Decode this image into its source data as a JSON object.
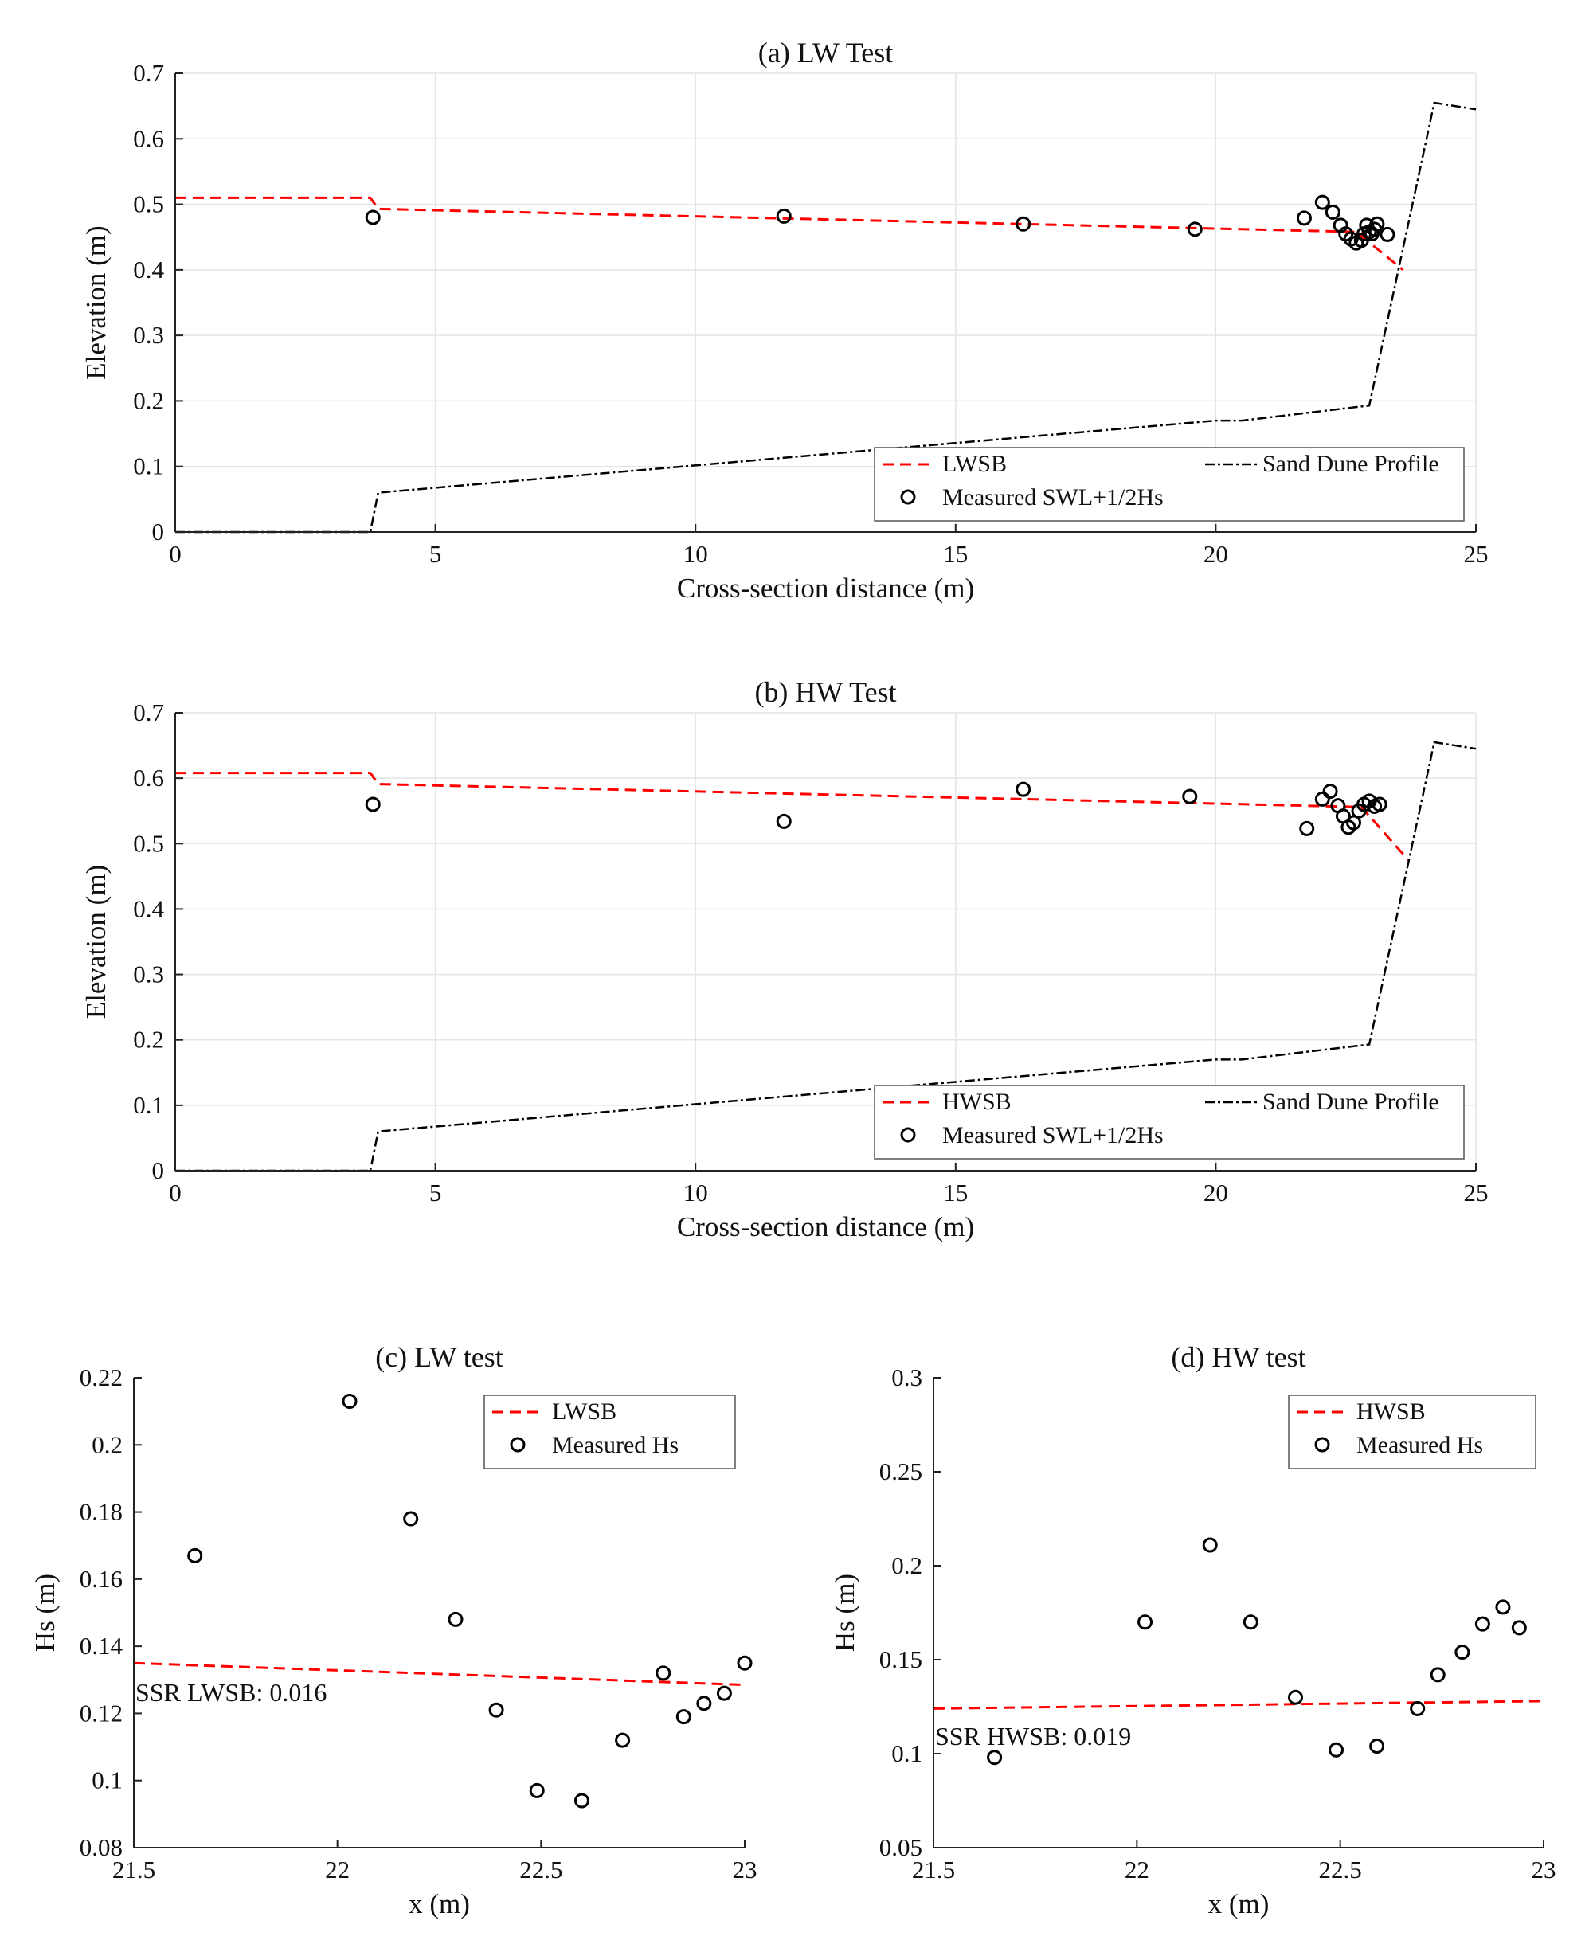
{
  "chart_data": [
    {
      "id": "a",
      "type": "line",
      "title": "(a) LW Test",
      "xlabel": "Cross-section distance (m)",
      "ylabel": "Elevation (m)",
      "xlim": [
        0,
        25
      ],
      "ylim": [
        0,
        0.7
      ],
      "xticks": [
        0,
        5,
        10,
        15,
        20,
        25
      ],
      "yticks": [
        0,
        0.1,
        0.2,
        0.3,
        0.4,
        0.5,
        0.6,
        0.7
      ],
      "grid": true,
      "legend_position": "bottom-right",
      "series": [
        {
          "name": "LWSB",
          "style": "dashed",
          "color": "#ff0000",
          "x": [
            0,
            3.75,
            3.9,
            22.7,
            23.6
          ],
          "y": [
            0.51,
            0.51,
            0.493,
            0.458,
            0.4
          ]
        },
        {
          "name": "Sand Dune Profile",
          "style": "dashdot",
          "color": "#000000",
          "x": [
            0,
            3.75,
            3.9,
            20.0,
            20.5,
            22.95,
            24.2,
            25
          ],
          "y": [
            0,
            0,
            0.06,
            0.17,
            0.17,
            0.193,
            0.655,
            0.645
          ]
        },
        {
          "name": "Measured SWL+1/2Hs",
          "style": "markers",
          "color": "#000000",
          "x": [
            3.8,
            11.7,
            16.3,
            19.6,
            21.7,
            22.05,
            22.25,
            22.4,
            22.5,
            22.6,
            22.7,
            22.8,
            22.85,
            22.9,
            22.95,
            23.0,
            23.05,
            23.1,
            23.3
          ],
          "y": [
            0.48,
            0.482,
            0.47,
            0.462,
            0.479,
            0.503,
            0.488,
            0.468,
            0.455,
            0.447,
            0.441,
            0.445,
            0.455,
            0.468,
            0.458,
            0.455,
            0.462,
            0.47,
            0.454
          ]
        }
      ]
    },
    {
      "id": "b",
      "type": "line",
      "title": "(b) HW Test",
      "xlabel": "Cross-section distance (m)",
      "ylabel": "Elevation (m)",
      "xlim": [
        0,
        25
      ],
      "ylim": [
        0,
        0.7
      ],
      "xticks": [
        0,
        5,
        10,
        15,
        20,
        25
      ],
      "yticks": [
        0,
        0.1,
        0.2,
        0.3,
        0.4,
        0.5,
        0.6,
        0.7
      ],
      "grid": true,
      "legend_position": "bottom-right",
      "series": [
        {
          "name": "HWSB",
          "style": "dashed",
          "color": "#ff0000",
          "x": [
            0,
            3.75,
            3.9,
            22.8,
            23.7
          ],
          "y": [
            0.608,
            0.608,
            0.591,
            0.556,
            0.475
          ]
        },
        {
          "name": "Sand Dune Profile",
          "style": "dashdot",
          "color": "#000000",
          "x": [
            0,
            3.75,
            3.9,
            20.0,
            20.5,
            22.95,
            24.2,
            25
          ],
          "y": [
            0,
            0,
            0.06,
            0.17,
            0.17,
            0.193,
            0.655,
            0.645
          ]
        },
        {
          "name": "Measured SWL+1/2Hs",
          "style": "markers",
          "color": "#000000",
          "x": [
            3.8,
            11.7,
            16.3,
            19.5,
            21.75,
            22.05,
            22.2,
            22.35,
            22.45,
            22.55,
            22.65,
            22.75,
            22.85,
            22.95,
            23.05,
            23.15
          ],
          "y": [
            0.56,
            0.534,
            0.583,
            0.572,
            0.523,
            0.568,
            0.58,
            0.558,
            0.542,
            0.525,
            0.532,
            0.55,
            0.56,
            0.565,
            0.557,
            0.56
          ]
        }
      ]
    },
    {
      "id": "c",
      "type": "scatter",
      "title": "(c) LW test",
      "xlabel": "x (m)",
      "ylabel": "Hs (m)",
      "xlim": [
        21.5,
        23
      ],
      "ylim": [
        0.08,
        0.22
      ],
      "xticks": [
        21.5,
        22,
        22.5,
        23
      ],
      "yticks": [
        0.08,
        0.1,
        0.12,
        0.14,
        0.16,
        0.18,
        0.2,
        0.22
      ],
      "grid": false,
      "legend_position": "top-right",
      "annotation": "SSR LWSB: 0.016",
      "series": [
        {
          "name": "LWSB",
          "style": "dashed",
          "color": "#ff0000",
          "x": [
            21.5,
            23.0
          ],
          "y": [
            0.135,
            0.1285
          ]
        },
        {
          "name": "Measured Hs",
          "style": "markers",
          "color": "#000000",
          "x": [
            21.65,
            22.03,
            22.18,
            22.29,
            22.39,
            22.49,
            22.6,
            22.7,
            22.8,
            22.85,
            22.9,
            22.95,
            23.0
          ],
          "y": [
            0.167,
            0.213,
            0.178,
            0.148,
            0.121,
            0.097,
            0.094,
            0.112,
            0.132,
            0.119,
            0.123,
            0.126,
            0.135
          ]
        }
      ]
    },
    {
      "id": "d",
      "type": "scatter",
      "title": "(d) HW test",
      "xlabel": "x (m)",
      "ylabel": "Hs (m)",
      "xlim": [
        21.5,
        23
      ],
      "ylim": [
        0.05,
        0.3
      ],
      "xticks": [
        21.5,
        22,
        22.5,
        23
      ],
      "yticks": [
        0.05,
        0.1,
        0.15,
        0.2,
        0.25,
        0.3
      ],
      "grid": false,
      "legend_position": "top-right",
      "annotation": "SSR HWSB: 0.019",
      "series": [
        {
          "name": "HWSB",
          "style": "dashed",
          "color": "#ff0000",
          "x": [
            21.5,
            23.0
          ],
          "y": [
            0.124,
            0.128
          ]
        },
        {
          "name": "Measured Hs",
          "style": "markers",
          "color": "#000000",
          "x": [
            21.65,
            22.02,
            22.18,
            22.28,
            22.39,
            22.49,
            22.59,
            22.69,
            22.74,
            22.8,
            22.85,
            22.9,
            22.94
          ],
          "y": [
            0.098,
            0.17,
            0.211,
            0.17,
            0.13,
            0.102,
            0.104,
            0.124,
            0.142,
            0.154,
            0.169,
            0.178,
            0.167
          ]
        }
      ]
    }
  ]
}
